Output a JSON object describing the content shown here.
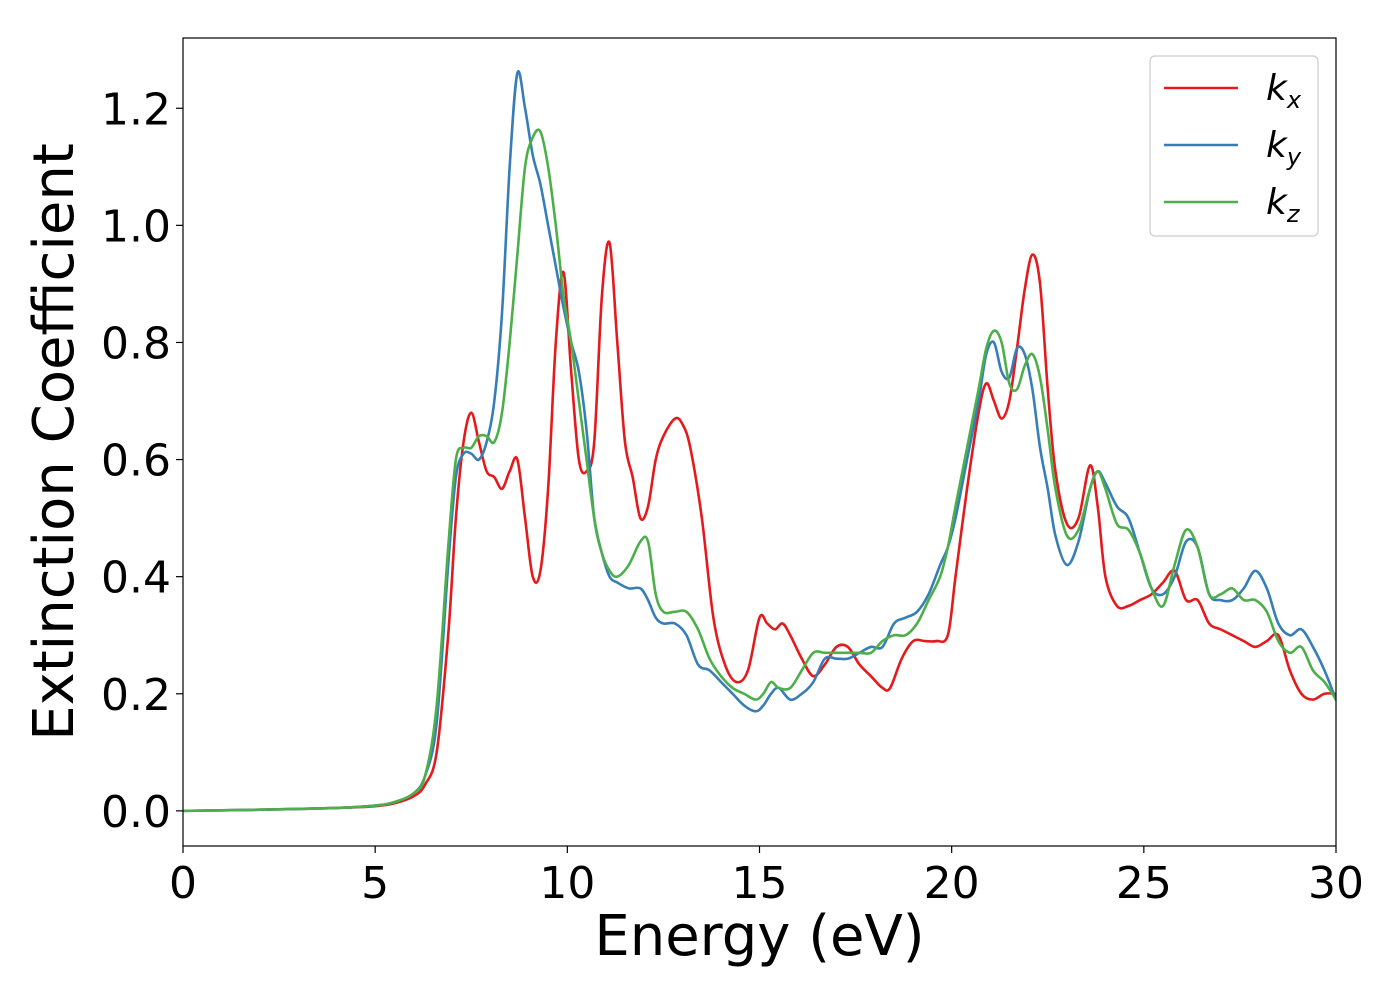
{
  "chart_data": {
    "type": "line",
    "title": "",
    "xlabel": "Energy (eV)",
    "ylabel": "Extinction Coefficient",
    "xlim": [
      0,
      30
    ],
    "ylim": [
      -0.06,
      1.32
    ],
    "x_ticks": [
      0,
      5,
      10,
      15,
      20,
      25,
      30
    ],
    "x_tick_labels": [
      "0",
      "5",
      "10",
      "15",
      "20",
      "25",
      "30"
    ],
    "y_ticks": [
      0.0,
      0.2,
      0.4,
      0.6,
      0.8,
      1.0,
      1.2
    ],
    "y_tick_labels": [
      "0.0",
      "0.2",
      "0.4",
      "0.6",
      "0.8",
      "1.0",
      "1.2"
    ],
    "grid": false,
    "legend_position": "top-right",
    "series": [
      {
        "name": "k",
        "name_sub": "x",
        "color": "#e41a1c",
        "x": [
          0,
          2,
          4,
          5,
          5.5,
          6,
          6.3,
          6.6,
          6.9,
          7.1,
          7.3,
          7.5,
          7.7,
          7.9,
          8.1,
          8.3,
          8.5,
          8.7,
          8.9,
          9.1,
          9.3,
          9.5,
          9.7,
          9.9,
          10.1,
          10.3,
          10.5,
          10.7,
          10.9,
          11.1,
          11.3,
          11.5,
          11.7,
          11.9,
          12.1,
          12.3,
          12.5,
          12.8,
          13.0,
          13.2,
          13.5,
          13.8,
          14.1,
          14.4,
          14.7,
          15.0,
          15.2,
          15.4,
          15.6,
          15.8,
          16.1,
          16.4,
          16.7,
          17.0,
          17.3,
          17.6,
          17.9,
          18.2,
          18.4,
          18.7,
          19.0,
          19.3,
          19.6,
          19.9,
          20.1,
          20.4,
          20.7,
          20.9,
          21.1,
          21.3,
          21.5,
          21.7,
          21.9,
          22.1,
          22.3,
          22.5,
          22.7,
          23.0,
          23.3,
          23.6,
          23.8,
          24.0,
          24.3,
          24.6,
          24.9,
          25.2,
          25.5,
          25.8,
          26.1,
          26.4,
          26.7,
          27.0,
          27.3,
          27.6,
          27.9,
          28.2,
          28.5,
          28.8,
          29.1,
          29.4,
          29.7,
          30.0
        ],
        "y": [
          0.0,
          0.002,
          0.005,
          0.008,
          0.013,
          0.025,
          0.045,
          0.1,
          0.3,
          0.5,
          0.63,
          0.68,
          0.63,
          0.58,
          0.57,
          0.55,
          0.58,
          0.6,
          0.5,
          0.4,
          0.41,
          0.55,
          0.8,
          0.92,
          0.75,
          0.6,
          0.58,
          0.63,
          0.88,
          0.97,
          0.8,
          0.63,
          0.57,
          0.5,
          0.52,
          0.6,
          0.64,
          0.67,
          0.66,
          0.62,
          0.5,
          0.33,
          0.25,
          0.22,
          0.24,
          0.33,
          0.32,
          0.31,
          0.32,
          0.3,
          0.26,
          0.23,
          0.25,
          0.28,
          0.28,
          0.25,
          0.23,
          0.21,
          0.21,
          0.26,
          0.29,
          0.29,
          0.29,
          0.3,
          0.4,
          0.55,
          0.68,
          0.73,
          0.7,
          0.67,
          0.7,
          0.79,
          0.89,
          0.95,
          0.9,
          0.72,
          0.58,
          0.49,
          0.5,
          0.59,
          0.52,
          0.4,
          0.35,
          0.35,
          0.36,
          0.37,
          0.39,
          0.41,
          0.36,
          0.36,
          0.32,
          0.31,
          0.3,
          0.29,
          0.28,
          0.29,
          0.3,
          0.24,
          0.2,
          0.19,
          0.2,
          0.2
        ]
      },
      {
        "name": "k",
        "name_sub": "y",
        "color": "#377eb8",
        "x": [
          0,
          2,
          4,
          5,
          5.5,
          6,
          6.3,
          6.6,
          6.9,
          7.1,
          7.3,
          7.5,
          7.7,
          7.9,
          8.1,
          8.3,
          8.5,
          8.7,
          8.9,
          9.1,
          9.3,
          9.5,
          9.7,
          9.9,
          10.1,
          10.3,
          10.5,
          10.7,
          10.9,
          11.1,
          11.3,
          11.6,
          11.9,
          12.1,
          12.3,
          12.5,
          12.8,
          13.1,
          13.4,
          13.7,
          14.0,
          14.3,
          14.6,
          14.9,
          15.1,
          15.3,
          15.5,
          15.8,
          16.1,
          16.4,
          16.7,
          17.0,
          17.3,
          17.6,
          17.9,
          18.2,
          18.5,
          18.8,
          19.1,
          19.4,
          19.7,
          19.9,
          20.1,
          20.4,
          20.7,
          20.9,
          21.1,
          21.3,
          21.5,
          21.7,
          21.9,
          22.1,
          22.3,
          22.5,
          22.7,
          23.0,
          23.3,
          23.6,
          23.8,
          24.0,
          24.3,
          24.6,
          24.9,
          25.2,
          25.5,
          25.8,
          26.1,
          26.4,
          26.7,
          27.0,
          27.3,
          27.6,
          27.9,
          28.2,
          28.5,
          28.8,
          29.1,
          29.4,
          29.7,
          30.0
        ],
        "y": [
          0.0,
          0.002,
          0.005,
          0.009,
          0.015,
          0.03,
          0.06,
          0.15,
          0.42,
          0.57,
          0.61,
          0.61,
          0.6,
          0.63,
          0.7,
          0.85,
          1.1,
          1.26,
          1.2,
          1.12,
          1.07,
          1.0,
          0.93,
          0.86,
          0.8,
          0.75,
          0.65,
          0.5,
          0.44,
          0.4,
          0.39,
          0.38,
          0.38,
          0.36,
          0.33,
          0.32,
          0.32,
          0.3,
          0.25,
          0.24,
          0.22,
          0.2,
          0.18,
          0.17,
          0.18,
          0.2,
          0.21,
          0.19,
          0.2,
          0.22,
          0.26,
          0.26,
          0.26,
          0.27,
          0.28,
          0.28,
          0.32,
          0.33,
          0.34,
          0.37,
          0.42,
          0.45,
          0.5,
          0.6,
          0.7,
          0.78,
          0.8,
          0.75,
          0.74,
          0.79,
          0.78,
          0.72,
          0.62,
          0.55,
          0.47,
          0.42,
          0.46,
          0.55,
          0.58,
          0.56,
          0.52,
          0.5,
          0.44,
          0.38,
          0.37,
          0.4,
          0.46,
          0.45,
          0.37,
          0.36,
          0.36,
          0.38,
          0.41,
          0.38,
          0.32,
          0.3,
          0.31,
          0.28,
          0.24,
          0.19
        ]
      },
      {
        "name": "k",
        "name_sub": "z",
        "color": "#4daf4a",
        "x": [
          0,
          2,
          4,
          5,
          5.5,
          6,
          6.3,
          6.6,
          6.9,
          7.1,
          7.3,
          7.5,
          7.7,
          7.9,
          8.1,
          8.3,
          8.5,
          8.7,
          8.9,
          9.1,
          9.3,
          9.5,
          9.7,
          9.9,
          10.1,
          10.3,
          10.5,
          10.7,
          10.9,
          11.1,
          11.3,
          11.6,
          11.9,
          12.1,
          12.3,
          12.5,
          12.8,
          13.1,
          13.4,
          13.7,
          14.0,
          14.3,
          14.6,
          14.9,
          15.1,
          15.3,
          15.5,
          15.8,
          16.1,
          16.4,
          16.7,
          17.0,
          17.3,
          17.6,
          17.9,
          18.2,
          18.5,
          18.8,
          19.1,
          19.4,
          19.7,
          19.9,
          20.1,
          20.4,
          20.7,
          20.9,
          21.1,
          21.3,
          21.5,
          21.7,
          21.9,
          22.1,
          22.3,
          22.5,
          22.7,
          23.0,
          23.3,
          23.6,
          23.8,
          24.0,
          24.3,
          24.6,
          24.9,
          25.2,
          25.5,
          25.8,
          26.1,
          26.4,
          26.7,
          27.0,
          27.3,
          27.6,
          27.9,
          28.2,
          28.5,
          28.8,
          29.1,
          29.4,
          29.7,
          30.0
        ],
        "y": [
          0.0,
          0.002,
          0.005,
          0.009,
          0.015,
          0.03,
          0.06,
          0.18,
          0.45,
          0.6,
          0.62,
          0.62,
          0.64,
          0.64,
          0.63,
          0.68,
          0.8,
          0.95,
          1.1,
          1.15,
          1.16,
          1.1,
          1.0,
          0.88,
          0.8,
          0.7,
          0.6,
          0.5,
          0.44,
          0.41,
          0.4,
          0.42,
          0.46,
          0.46,
          0.37,
          0.34,
          0.34,
          0.34,
          0.31,
          0.26,
          0.23,
          0.21,
          0.2,
          0.19,
          0.2,
          0.22,
          0.21,
          0.21,
          0.24,
          0.27,
          0.27,
          0.27,
          0.27,
          0.27,
          0.27,
          0.29,
          0.3,
          0.3,
          0.32,
          0.36,
          0.4,
          0.45,
          0.52,
          0.62,
          0.72,
          0.79,
          0.82,
          0.8,
          0.73,
          0.72,
          0.76,
          0.78,
          0.74,
          0.65,
          0.55,
          0.47,
          0.48,
          0.55,
          0.58,
          0.55,
          0.49,
          0.48,
          0.44,
          0.38,
          0.35,
          0.42,
          0.48,
          0.45,
          0.37,
          0.37,
          0.38,
          0.36,
          0.36,
          0.34,
          0.29,
          0.27,
          0.28,
          0.24,
          0.22,
          0.19
        ]
      }
    ]
  }
}
